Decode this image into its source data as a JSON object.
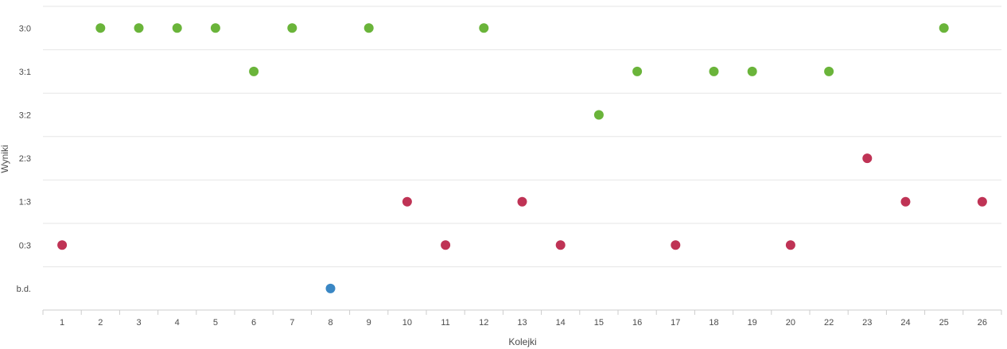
{
  "chart_data": {
    "type": "scatter",
    "xlabel": "Kolejki",
    "ylabel": "Wyniki",
    "categories": [
      "1",
      "2",
      "3",
      "4",
      "5",
      "6",
      "7",
      "8",
      "9",
      "10",
      "11",
      "12",
      "13",
      "14",
      "15",
      "16",
      "17",
      "18",
      "19",
      "20",
      "22",
      "23",
      "24",
      "25",
      "26"
    ],
    "y_categories": [
      "b.d.",
      "0:3",
      "1:3",
      "2:3",
      "3:2",
      "3:1",
      "3:0"
    ],
    "points": [
      {
        "x": "1",
        "y": "0:3",
        "result": "loss"
      },
      {
        "x": "2",
        "y": "3:0",
        "result": "win"
      },
      {
        "x": "3",
        "y": "3:0",
        "result": "win"
      },
      {
        "x": "4",
        "y": "3:0",
        "result": "win"
      },
      {
        "x": "5",
        "y": "3:0",
        "result": "win"
      },
      {
        "x": "6",
        "y": "3:1",
        "result": "win"
      },
      {
        "x": "7",
        "y": "3:0",
        "result": "win"
      },
      {
        "x": "8",
        "y": "b.d.",
        "result": "none"
      },
      {
        "x": "9",
        "y": "3:0",
        "result": "win"
      },
      {
        "x": "10",
        "y": "1:3",
        "result": "loss"
      },
      {
        "x": "11",
        "y": "0:3",
        "result": "loss"
      },
      {
        "x": "12",
        "y": "3:0",
        "result": "win"
      },
      {
        "x": "13",
        "y": "1:3",
        "result": "loss"
      },
      {
        "x": "14",
        "y": "0:3",
        "result": "loss"
      },
      {
        "x": "15",
        "y": "3:2",
        "result": "win"
      },
      {
        "x": "16",
        "y": "3:1",
        "result": "win"
      },
      {
        "x": "17",
        "y": "0:3",
        "result": "loss"
      },
      {
        "x": "18",
        "y": "3:1",
        "result": "win"
      },
      {
        "x": "19",
        "y": "3:1",
        "result": "win"
      },
      {
        "x": "20",
        "y": "0:3",
        "result": "loss"
      },
      {
        "x": "22",
        "y": "3:1",
        "result": "win"
      },
      {
        "x": "23",
        "y": "2:3",
        "result": "loss"
      },
      {
        "x": "24",
        "y": "1:3",
        "result": "loss"
      },
      {
        "x": "25",
        "y": "3:0",
        "result": "win"
      },
      {
        "x": "26",
        "y": "1:3",
        "result": "loss"
      }
    ],
    "colors": {
      "win": "#6ab43a",
      "loss": "#bf3355",
      "none": "#3a87c4"
    },
    "grid": true,
    "legend": "none"
  }
}
